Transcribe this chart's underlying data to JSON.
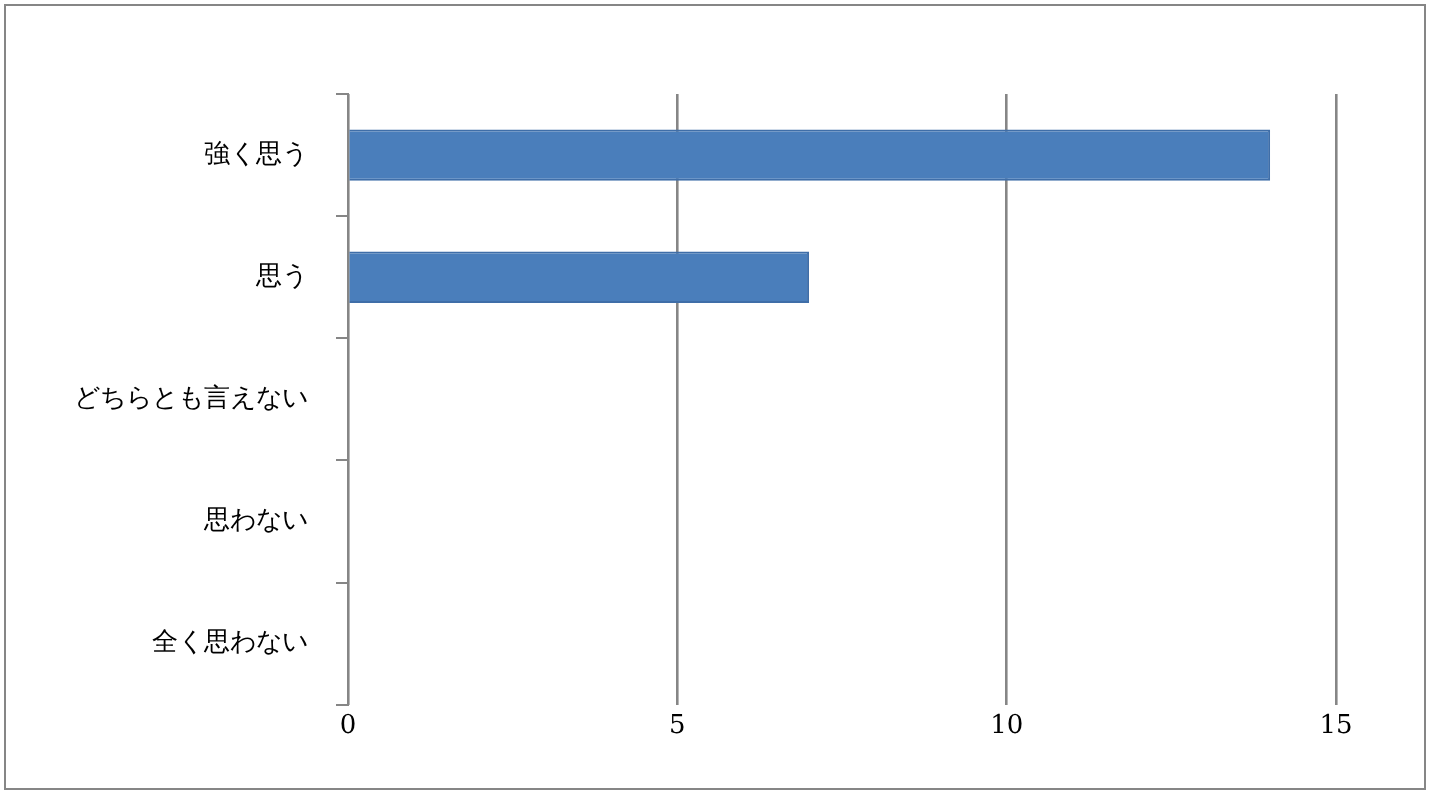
{
  "chart_data": {
    "type": "bar",
    "orientation": "horizontal",
    "categories": [
      "強く思う",
      "思う",
      "どちらとも言えない",
      "思わない",
      "全く思わない"
    ],
    "values": [
      14,
      7,
      0,
      0,
      0
    ],
    "color": "#4a7ebb",
    "xlim": [
      0,
      15
    ],
    "xticks": [
      0,
      5,
      10,
      15
    ],
    "grid": "x"
  }
}
